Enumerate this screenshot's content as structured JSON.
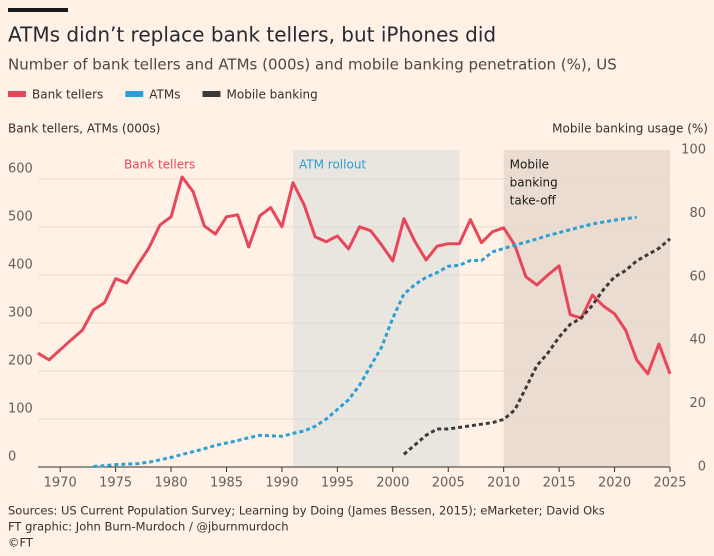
{
  "chart_data": {
    "type": "line",
    "title": "ATMs didn’t replace bank tellers, but iPhones did",
    "subtitle": "Number of bank tellers and ATMs (000s) and mobile banking penetration (%), US",
    "y_label": "Bank tellers, ATMs (000s)",
    "y2_label": "Mobile banking usage (%)",
    "x": [
      1968,
      1969,
      1970,
      1971,
      1972,
      1973,
      1974,
      1975,
      1976,
      1977,
      1978,
      1979,
      1980,
      1981,
      1982,
      1983,
      1984,
      1985,
      1986,
      1987,
      1988,
      1989,
      1990,
      1991,
      1992,
      1993,
      1994,
      1995,
      1996,
      1997,
      1998,
      1999,
      2000,
      2001,
      2002,
      2003,
      2004,
      2005,
      2006,
      2007,
      2008,
      2009,
      2010,
      2011,
      2012,
      2013,
      2014,
      2015,
      2016,
      2017,
      2018,
      2019,
      2020,
      2021,
      2022,
      2023,
      2024,
      2025
    ],
    "series": [
      {
        "name": "Bank tellers",
        "color": "#e8475a",
        "dash": false,
        "values": [
          237,
          223,
          244,
          265,
          285,
          327,
          342,
          392,
          383,
          421,
          456,
          504,
          521,
          604,
          573,
          502,
          485,
          521,
          525,
          458,
          523,
          540,
          500,
          592,
          546,
          479,
          469,
          481,
          454,
          500,
          492,
          462,
          429,
          517,
          469,
          431,
          460,
          465,
          465,
          515,
          467,
          490,
          498,
          462,
          396,
          379,
          400,
          419,
          317,
          310,
          358,
          335,
          319,
          285,
          223,
          194,
          256,
          194
        ]
      },
      {
        "name": "ATMs",
        "color": "#2a9fd8",
        "dash": true,
        "values": [
          null,
          null,
          null,
          null,
          null,
          1,
          3,
          5,
          6,
          7,
          10,
          15,
          20,
          26,
          32,
          38,
          45,
          50,
          55,
          61,
          66,
          65,
          64,
          70,
          75,
          85,
          100,
          120,
          140,
          170,
          210,
          250,
          310,
          360,
          380,
          395,
          405,
          418,
          420,
          430,
          430,
          448,
          455,
          462,
          468,
          475,
          482,
          488,
          494,
          500,
          506,
          510,
          514,
          517,
          520,
          null,
          null,
          null
        ]
      },
      {
        "name": "Mobile banking",
        "color": "#3d3a3a",
        "dash": true,
        "axis": "y2",
        "values": [
          null,
          null,
          null,
          null,
          null,
          null,
          null,
          null,
          null,
          null,
          null,
          null,
          null,
          null,
          null,
          null,
          null,
          null,
          null,
          null,
          null,
          null,
          null,
          null,
          null,
          null,
          null,
          null,
          null,
          null,
          null,
          null,
          null,
          4,
          7,
          10,
          12,
          12,
          12.5,
          13,
          13.5,
          14,
          15,
          18,
          25,
          32,
          36,
          41,
          45,
          47,
          51,
          56,
          60,
          62,
          65,
          67,
          69,
          72
        ]
      }
    ],
    "xlim": [
      1968,
      2025
    ],
    "xticks": [
      1970,
      1975,
      1980,
      1985,
      1990,
      1995,
      2000,
      2005,
      2010,
      2015,
      2020,
      2025
    ],
    "ylim": [
      0,
      660
    ],
    "yticks": [
      0,
      100,
      200,
      300,
      400,
      500,
      600
    ],
    "y2lim": [
      0,
      100
    ],
    "y2ticks": [
      0,
      20,
      40,
      60,
      80,
      100
    ],
    "grid": true,
    "legend": "top",
    "series_label": "Bank tellers",
    "bands": [
      {
        "x": [
          1991,
          2006
        ],
        "color": "#e9e6e0",
        "label_lines": [
          "ATM rollout"
        ],
        "label_color": "#2a9fd8"
      },
      {
        "x": [
          2010,
          2025
        ],
        "color": "#eadcd0",
        "label_lines": [
          "Mobile",
          "banking",
          "take-off"
        ],
        "label_color": "#1a1a1a"
      }
    ],
    "sources": [
      "Sources: US Current Population Survey; Learning by Doing (James Bessen, 2015); eMarketer; David Oks",
      "FT graphic: John Burn-Murdoch / @jburnmurdoch",
      "©FT"
    ]
  }
}
